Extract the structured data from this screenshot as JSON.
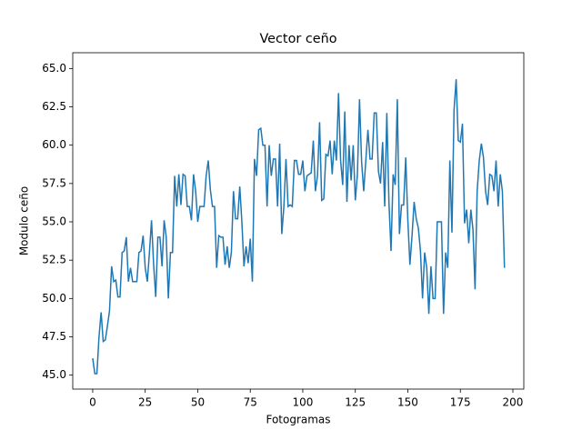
{
  "chart_data": {
    "type": "line",
    "title": "Vector ceño",
    "xlabel": "Fotogramas",
    "ylabel": "Modulo ceño",
    "x": [
      0,
      1,
      2,
      3,
      4,
      5,
      6,
      7,
      8,
      9,
      10,
      11,
      12,
      13,
      14,
      15,
      16,
      17,
      18,
      19,
      20,
      21,
      22,
      23,
      24,
      25,
      26,
      27,
      28,
      29,
      30,
      31,
      32,
      33,
      34,
      35,
      36,
      37,
      38,
      39,
      40,
      41,
      42,
      43,
      44,
      45,
      46,
      47,
      48,
      49,
      50,
      51,
      52,
      53,
      54,
      55,
      56,
      57,
      58,
      59,
      60,
      61,
      62,
      63,
      64,
      65,
      66,
      67,
      68,
      69,
      70,
      71,
      72,
      73,
      74,
      75,
      76,
      77,
      78,
      79,
      80,
      81,
      82,
      83,
      84,
      85,
      86,
      87,
      88,
      89,
      90,
      91,
      92,
      93,
      94,
      95,
      96,
      97,
      98,
      99,
      100,
      101,
      102,
      103,
      104,
      105,
      106,
      107,
      108,
      109,
      110,
      111,
      112,
      113,
      114,
      115,
      116,
      117,
      118,
      119,
      120,
      121,
      122,
      123,
      124,
      125,
      126,
      127,
      128,
      129,
      130,
      131,
      132,
      133,
      134,
      135,
      136,
      137,
      138,
      139,
      140,
      141,
      142,
      143,
      144,
      145,
      146,
      147,
      148,
      149,
      150,
      151,
      152,
      153,
      154,
      155,
      156,
      157,
      158,
      159,
      160,
      161,
      162,
      163,
      164,
      165,
      166,
      167,
      168,
      169,
      170,
      171,
      172,
      173,
      174,
      175,
      176,
      177,
      178,
      179,
      180,
      181,
      182,
      183,
      184,
      185,
      186,
      187,
      188,
      189,
      190,
      191,
      192,
      193,
      194,
      195,
      196
    ],
    "series": [
      {
        "color": "#1f77b4",
        "values": [
          46.1,
          45.1,
          45.1,
          47.5,
          49.1,
          47.2,
          47.3,
          48.2,
          49.2,
          52.1,
          51.1,
          51.2,
          50.1,
          50.1,
          53.0,
          53.1,
          54.0,
          51.1,
          52.0,
          51.1,
          51.1,
          51.1,
          53.0,
          53.1,
          54.1,
          52.0,
          51.1,
          53.0,
          55.1,
          52.2,
          50.1,
          54.0,
          54.0,
          52.1,
          55.1,
          54.0,
          50.0,
          53.0,
          53.0,
          58.0,
          56.0,
          58.1,
          56.1,
          58.1,
          58.0,
          56.0,
          56.0,
          55.1,
          58.1,
          57.0,
          55.0,
          56.0,
          56.0,
          56.0,
          58.0,
          59.0,
          57.1,
          56.0,
          56.0,
          52.0,
          54.1,
          54.0,
          54.0,
          52.2,
          53.4,
          52.0,
          53.0,
          57.0,
          55.2,
          55.2,
          57.3,
          55.0,
          52.1,
          53.4,
          52.3,
          53.9,
          51.1,
          59.1,
          58.0,
          61.0,
          61.1,
          60.0,
          60.0,
          56.0,
          60.0,
          58.0,
          59.1,
          59.1,
          56.0,
          60.1,
          54.2,
          56.0,
          59.1,
          56.0,
          56.1,
          56.0,
          59.0,
          59.0,
          58.1,
          58.1,
          59.0,
          57.0,
          58.0,
          58.1,
          58.2,
          60.3,
          57.0,
          58.0,
          61.5,
          56.4,
          56.5,
          59.4,
          59.3,
          60.3,
          58.1,
          60.3,
          59.0,
          63.4,
          59.0,
          57.4,
          62.2,
          56.3,
          60.0,
          57.7,
          60.0,
          56.4,
          58.1,
          63.0,
          58.9,
          57.0,
          59.0,
          61.0,
          59.1,
          59.1,
          62.1,
          62.1,
          58.3,
          57.5,
          60.2,
          56.0,
          62.1,
          56.3,
          53.1,
          58.1,
          57.4,
          63.0,
          54.2,
          56.1,
          56.1,
          59.2,
          55.1,
          52.2,
          54.1,
          56.3,
          55.2,
          54.6,
          53.1,
          50.0,
          53.0,
          52.0,
          49.0,
          52.1,
          50.0,
          50.0,
          55.0,
          55.0,
          55.0,
          49.0,
          53.0,
          52.0,
          59.0,
          54.3,
          62.3,
          64.3,
          60.3,
          60.2,
          61.4,
          54.9,
          55.8,
          53.6,
          55.8,
          54.5,
          50.6,
          57.0,
          59.0,
          60.1,
          59.2,
          57.0,
          56.1,
          58.1,
          58.0,
          57.0,
          59.0,
          56.0,
          58.1,
          57.0,
          52.0
        ]
      }
    ],
    "xlim": [
      -9.5,
      205.2
    ],
    "ylim": [
      44.09,
      66.03
    ],
    "xticks": [
      0,
      25,
      50,
      75,
      100,
      125,
      150,
      175,
      200
    ],
    "yticks": [
      {
        "value": 45,
        "label": "45.0"
      },
      47.5,
      {
        "value": 50,
        "label": "50.0"
      },
      52.5,
      {
        "value": 55,
        "label": "55.0"
      },
      57.5,
      {
        "value": 60,
        "label": "60.0"
      },
      62.5,
      {
        "value": 65,
        "label": "65.0"
      }
    ]
  }
}
